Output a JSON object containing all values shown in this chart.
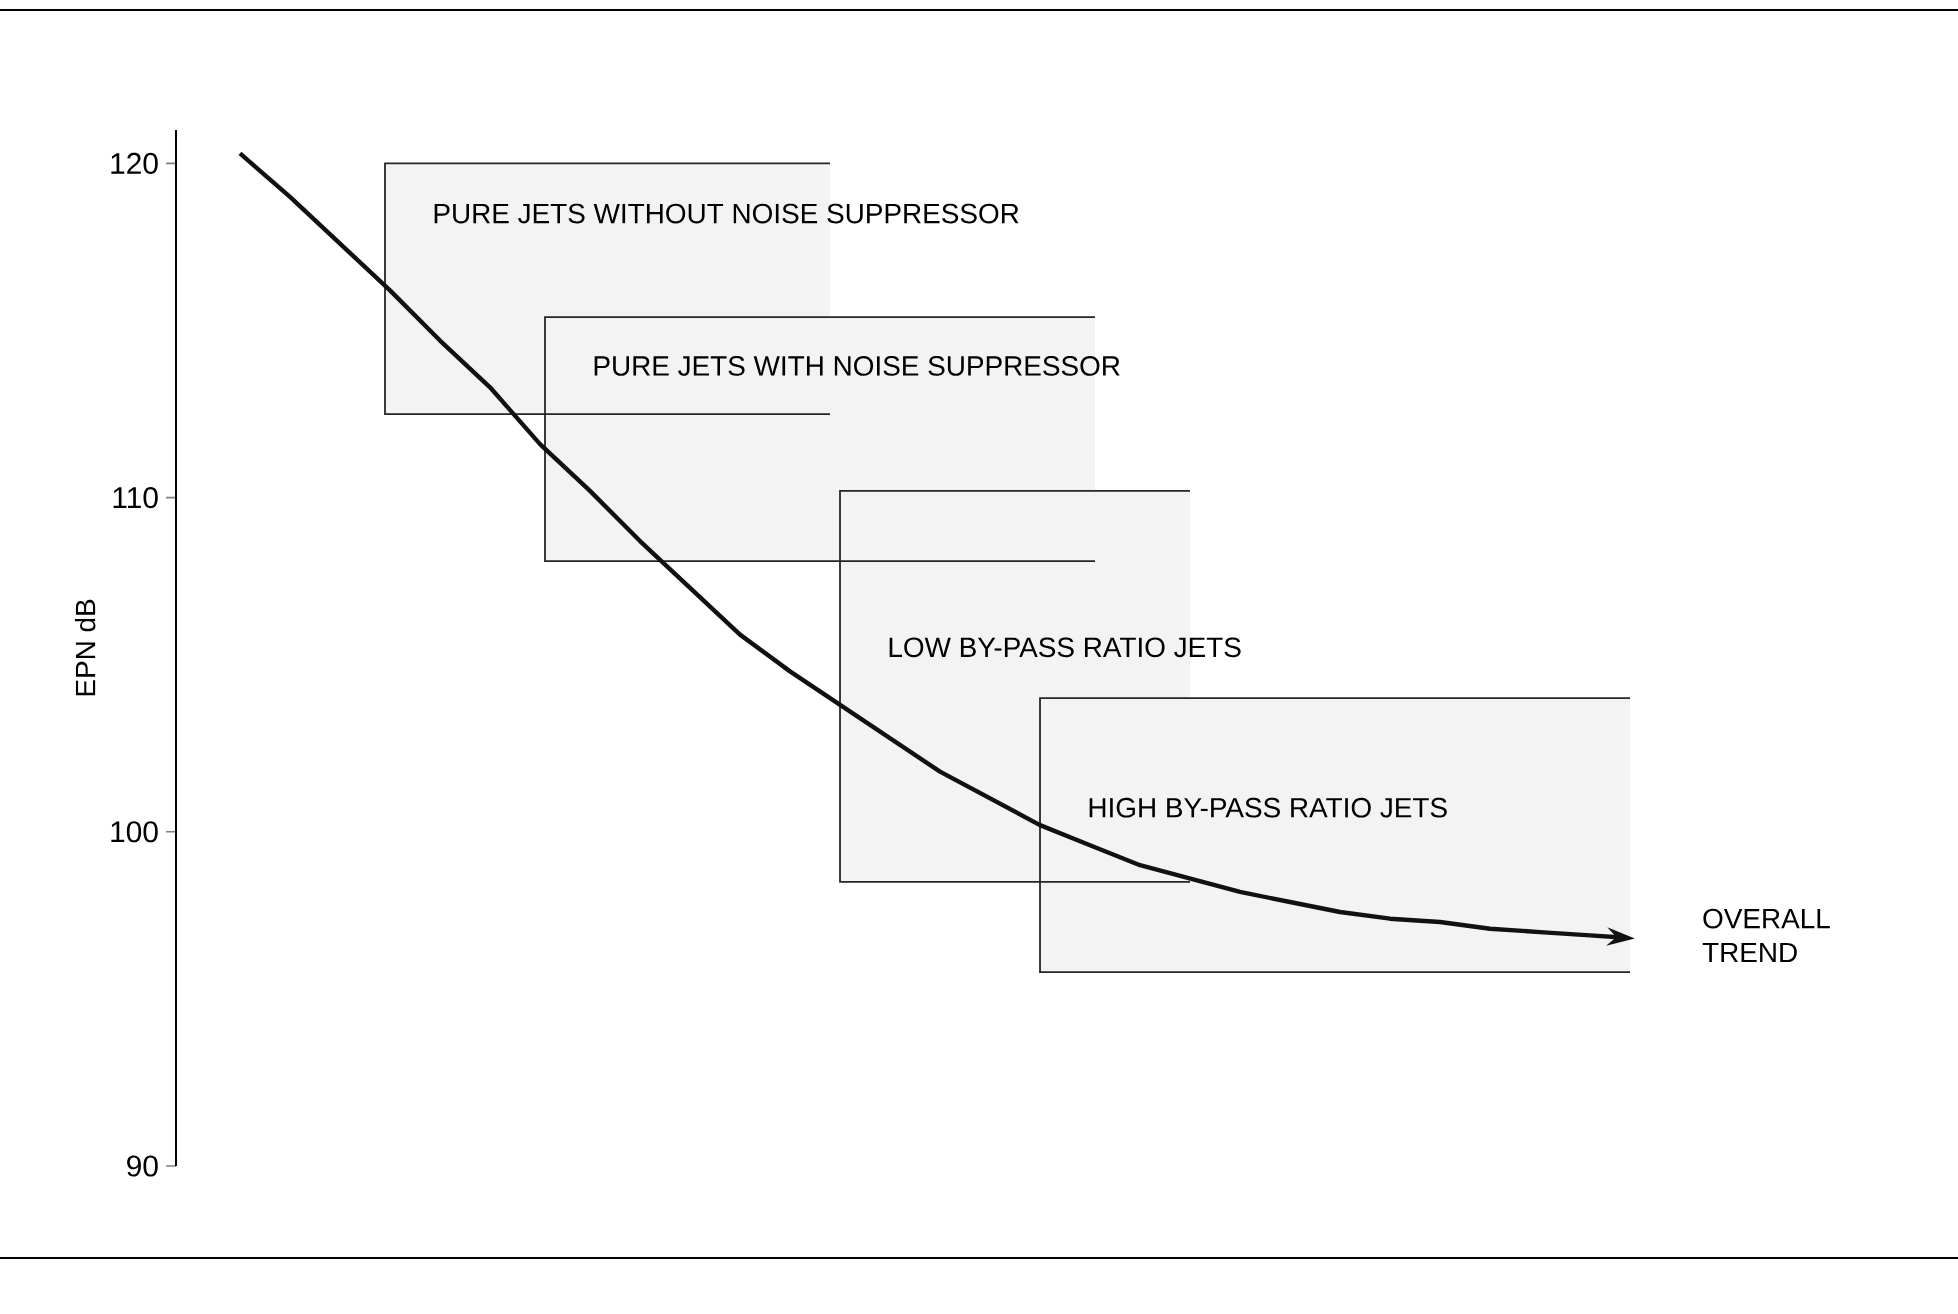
{
  "chart_data": {
    "type": "line",
    "ylabel": "EPN dB",
    "ylim": [
      90,
      121
    ],
    "yticks": [
      90,
      100,
      110,
      120
    ],
    "tick_labels": "y",
    "marker": "none",
    "line_style": "solid",
    "categories": [
      null,
      null,
      null,
      null,
      null,
      null,
      null,
      null,
      null,
      null,
      null,
      null,
      null,
      null,
      null,
      null,
      null,
      null,
      null,
      null,
      null,
      null,
      null,
      null,
      null,
      null,
      null,
      null
    ],
    "series": [
      {
        "color": "#111111",
        "values": [
          120.3,
          119.0,
          117.6,
          116.2,
          114.7,
          113.3,
          111.6,
          110.2,
          108.7,
          107.3,
          105.9,
          104.8,
          103.8,
          102.8,
          101.8,
          101.0,
          100.2,
          99.6,
          99.0,
          98.6,
          98.2,
          97.9,
          97.6,
          97.4,
          97.3,
          97.1,
          97.0,
          96.9
        ]
      }
    ],
    "bands": [
      {
        "axis": "y",
        "from": 112.5,
        "to": 120.0,
        "label": "PURE JETS WITHOUT NOISE SUPPRESSOR",
        "color": "#f3f3f3"
      },
      {
        "axis": "y",
        "from": 108.1,
        "to": 115.4,
        "label": "PURE JETS WITH NOISE SUPPRESSOR",
        "color": "#f3f3f3"
      },
      {
        "axis": "y",
        "from": 98.5,
        "to": 110.2,
        "label": "LOW BY-PASS RATIO JETS",
        "color": "#f3f3f3"
      },
      {
        "axis": "y",
        "from": 95.8,
        "to": 104.0,
        "label": "HIGH BY-PASS RATIO JETS",
        "color": "#f3f3f3"
      }
    ],
    "annotations": [
      "OVERALL TREND"
    ]
  }
}
